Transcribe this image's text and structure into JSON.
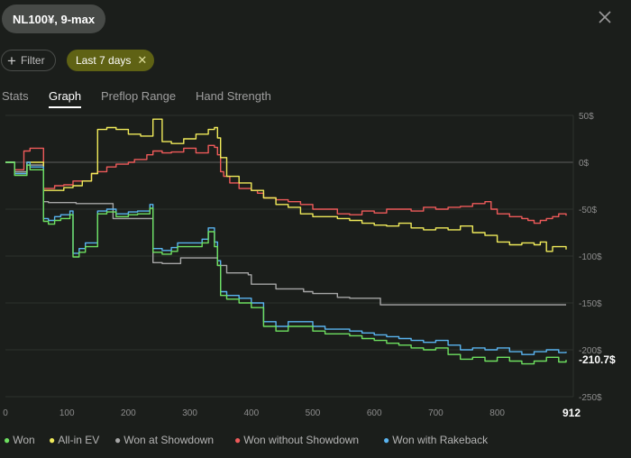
{
  "header": {
    "title": "NL100¥, 9-max",
    "filter_label": "Filter",
    "chip_label": "Last 7 days"
  },
  "tabs": [
    {
      "label": "Stats",
      "active": false
    },
    {
      "label": "Graph",
      "active": true
    },
    {
      "label": "Preflop Range",
      "active": false
    },
    {
      "label": "Hand Strength",
      "active": false
    }
  ],
  "legend": [
    {
      "label": "Won",
      "color": "#6ee060"
    },
    {
      "label": "All-in EV",
      "color": "#f0ea5a"
    },
    {
      "label": "Won at Showdown",
      "color": "#a6a6a6"
    },
    {
      "label": "Won without Showdown",
      "color": "#ee5a5a"
    },
    {
      "label": "Won with Rakeback",
      "color": "#5ab4f0"
    }
  ],
  "chart_data": {
    "type": "line",
    "xlim": [
      0,
      912
    ],
    "ylim": [
      -250,
      50
    ],
    "x_ticks": [
      0,
      100,
      200,
      300,
      400,
      500,
      600,
      700,
      800
    ],
    "x_end_label": "912",
    "y_ticks": [
      50,
      0,
      -50,
      -100,
      -150,
      -200,
      -250
    ],
    "y_tick_labels": [
      "50$",
      "0$",
      "-50$",
      "-100$",
      "-150$",
      "-200$",
      "-250$"
    ],
    "final_value_label": "-210.7$",
    "zero_line": true,
    "series": [
      {
        "name": "Won at Showdown",
        "color": "#a6a6a6",
        "x": [
          0,
          15,
          35,
          62,
          62,
          70,
          95,
          115,
          165,
          175,
          200,
          240,
          240,
          255,
          285,
          345,
          345,
          360,
          395,
          400,
          440,
          485,
          500,
          520,
          540,
          560,
          600,
          610,
          912
        ],
        "y": [
          0,
          -10,
          -3,
          -5,
          -42,
          -43,
          -43,
          -44,
          -44,
          -60,
          -60,
          -60,
          -107,
          -108,
          -102,
          -102,
          -110,
          -118,
          -120,
          -130,
          -135,
          -138,
          -140,
          -140,
          -144,
          -145,
          -145,
          -152,
          -152
        ]
      },
      {
        "name": "Won without Showdown",
        "color": "#ee5a5a",
        "x": [
          0,
          15,
          30,
          40,
          62,
          66,
          80,
          95,
          110,
          125,
          140,
          150,
          165,
          180,
          200,
          210,
          230,
          240,
          255,
          270,
          290,
          310,
          330,
          340,
          345,
          350,
          355,
          365,
          380,
          400,
          410,
          420,
          440,
          460,
          480,
          500,
          520,
          540,
          560,
          580,
          600,
          620,
          640,
          660,
          680,
          700,
          720,
          740,
          760,
          780,
          790,
          800,
          820,
          840,
          850,
          860,
          870,
          880,
          890,
          900,
          912
        ],
        "y": [
          0,
          -8,
          12,
          15,
          -28,
          -28,
          -25,
          -24,
          -20,
          -20,
          -12,
          -10,
          -5,
          -2,
          0,
          3,
          8,
          12,
          10,
          11,
          15,
          10,
          18,
          16,
          8,
          -10,
          -15,
          -22,
          -28,
          -30,
          -33,
          -38,
          -40,
          -42,
          -45,
          -50,
          -50,
          -55,
          -56,
          -52,
          -54,
          -50,
          -50,
          -52,
          -48,
          -50,
          -48,
          -47,
          -44,
          -42,
          -50,
          -55,
          -58,
          -60,
          -62,
          -65,
          -62,
          -60,
          -58,
          -55,
          -57
        ]
      },
      {
        "name": "All-in EV",
        "color": "#f0ea5a",
        "x": [
          0,
          15,
          35,
          62,
          70,
          95,
          110,
          125,
          140,
          150,
          165,
          180,
          200,
          220,
          240,
          255,
          270,
          290,
          310,
          330,
          340,
          345,
          350,
          360,
          380,
          400,
          420,
          440,
          460,
          480,
          500,
          520,
          540,
          560,
          580,
          600,
          620,
          640,
          660,
          680,
          700,
          720,
          740,
          760,
          780,
          800,
          820,
          840,
          860,
          870,
          880,
          890,
          912
        ],
        "y": [
          0,
          -12,
          0,
          -30,
          -30,
          -27,
          -25,
          -20,
          -12,
          35,
          37,
          35,
          30,
          28,
          46,
          22,
          20,
          25,
          30,
          35,
          37,
          26,
          5,
          -15,
          -22,
          -30,
          -38,
          -45,
          -48,
          -55,
          -58,
          -58,
          -60,
          -62,
          -65,
          -67,
          -68,
          -65,
          -70,
          -72,
          -70,
          -72,
          -68,
          -75,
          -78,
          -85,
          -88,
          -86,
          -88,
          -85,
          -95,
          -90,
          -93
        ]
      },
      {
        "name": "Won with Rakeback",
        "color": "#5ab4f0",
        "x": [
          0,
          15,
          35,
          40,
          62,
          70,
          80,
          90,
          105,
          110,
          120,
          130,
          150,
          165,
          180,
          200,
          215,
          235,
          240,
          255,
          270,
          280,
          300,
          320,
          330,
          340,
          345,
          350,
          360,
          380,
          400,
          420,
          440,
          460,
          480,
          500,
          520,
          540,
          560,
          580,
          600,
          620,
          640,
          660,
          680,
          700,
          720,
          740,
          760,
          780,
          800,
          820,
          840,
          860,
          880,
          900,
          912
        ],
        "y": [
          0,
          -12,
          0,
          -5,
          -60,
          -62,
          -58,
          -56,
          -52,
          -97,
          -92,
          -86,
          -52,
          -50,
          -55,
          -53,
          -52,
          -45,
          -92,
          -94,
          -91,
          -86,
          -86,
          -82,
          -70,
          -85,
          -105,
          -138,
          -142,
          -145,
          -150,
          -170,
          -175,
          -170,
          -170,
          -175,
          -178,
          -178,
          -180,
          -182,
          -184,
          -186,
          -188,
          -190,
          -192,
          -190,
          -195,
          -200,
          -198,
          -200,
          -198,
          -202,
          -205,
          -202,
          -200,
          -203,
          -202
        ]
      },
      {
        "name": "Won",
        "color": "#6ee060",
        "x": [
          0,
          15,
          35,
          40,
          62,
          70,
          80,
          90,
          105,
          110,
          120,
          130,
          150,
          165,
          180,
          200,
          215,
          235,
          240,
          255,
          270,
          280,
          300,
          320,
          330,
          340,
          345,
          350,
          360,
          380,
          400,
          420,
          440,
          460,
          480,
          500,
          520,
          540,
          560,
          580,
          600,
          620,
          640,
          660,
          680,
          700,
          720,
          740,
          760,
          780,
          800,
          820,
          840,
          860,
          880,
          900,
          912
        ],
        "y": [
          0,
          -14,
          -3,
          -8,
          -63,
          -66,
          -62,
          -60,
          -56,
          -101,
          -96,
          -90,
          -55,
          -53,
          -58,
          -56,
          -55,
          -49,
          -96,
          -98,
          -95,
          -90,
          -90,
          -86,
          -74,
          -90,
          -110,
          -142,
          -146,
          -150,
          -155,
          -175,
          -180,
          -175,
          -175,
          -180,
          -183,
          -183,
          -185,
          -188,
          -190,
          -193,
          -195,
          -198,
          -200,
          -198,
          -205,
          -210,
          -208,
          -212,
          -208,
          -212,
          -215,
          -212,
          -208,
          -213,
          -210.7
        ]
      }
    ]
  }
}
